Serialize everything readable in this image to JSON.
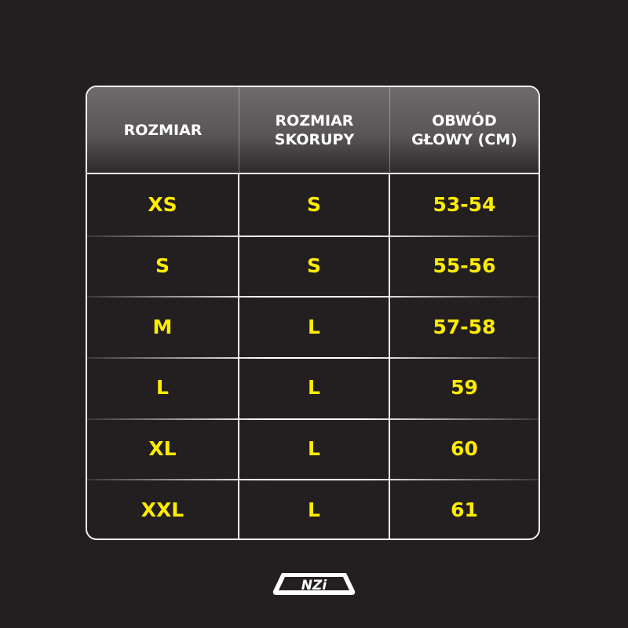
{
  "table": {
    "headers": [
      "ROZMIAR",
      "ROZMIAR\nSKORUPY",
      "OBWÓD\nGŁOWY (CM)"
    ],
    "rows": [
      [
        "XS",
        "S",
        "53-54"
      ],
      [
        "S",
        "S",
        "55-56"
      ],
      [
        "M",
        "L",
        "57-58"
      ],
      [
        "L",
        "L",
        "59"
      ],
      [
        "XL",
        "L",
        "60"
      ],
      [
        "XXL",
        "L",
        "61"
      ]
    ]
  },
  "logo": {
    "text": "NZI"
  },
  "colors": {
    "background": "#231f20",
    "value_text": "#ffec00",
    "header_text": "#ffffff"
  }
}
